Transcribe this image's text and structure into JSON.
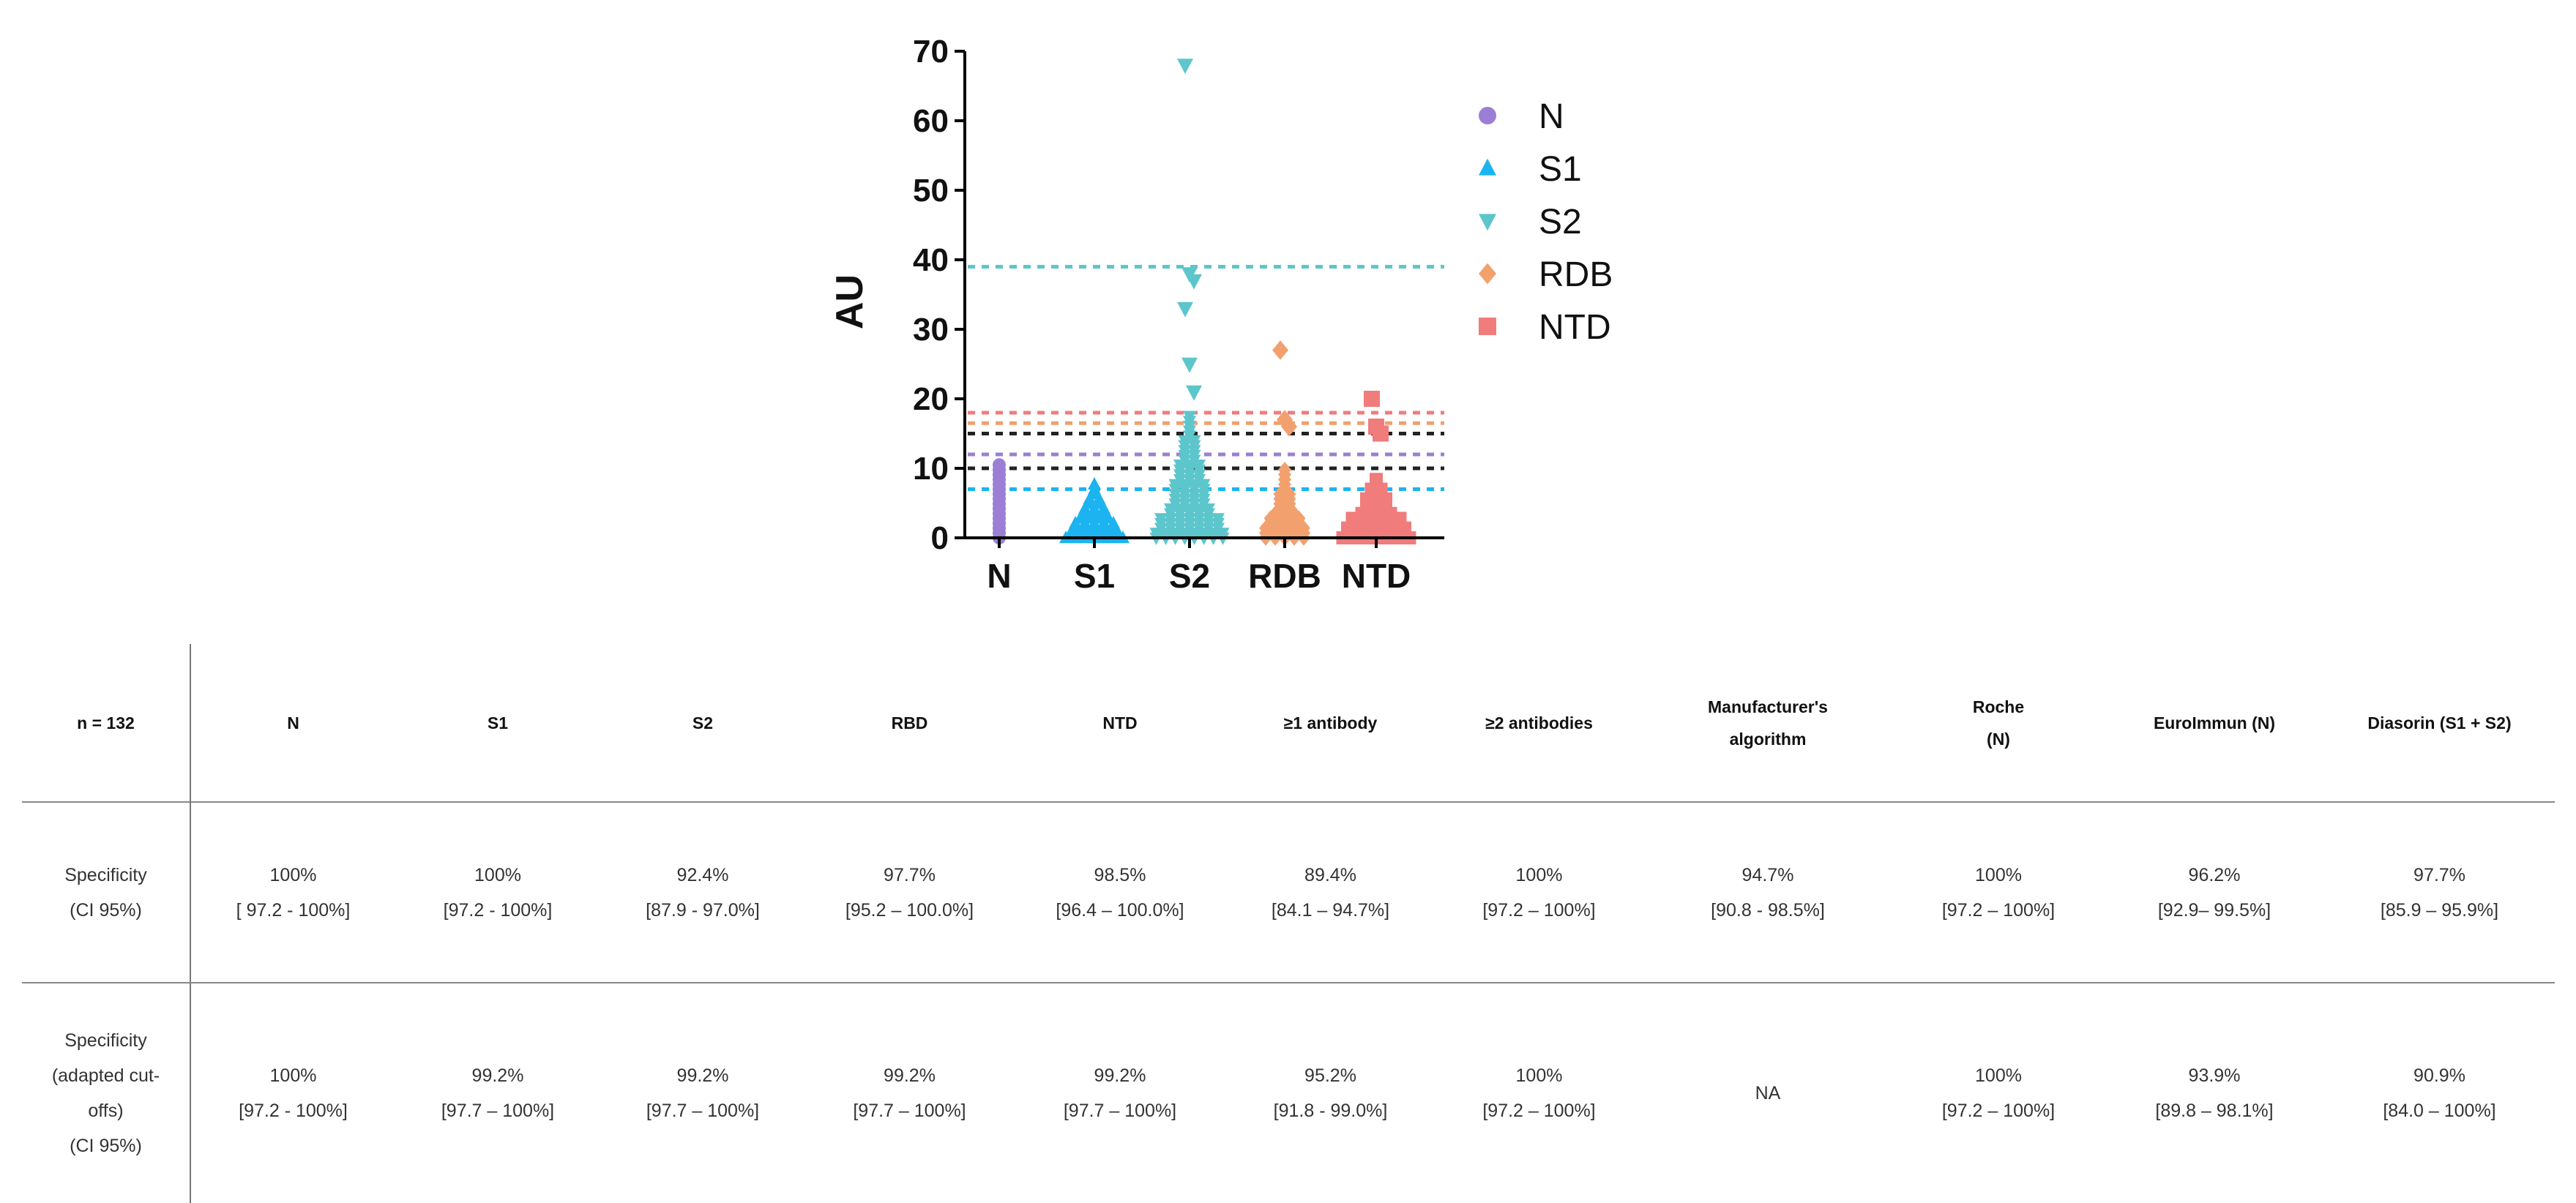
{
  "chart_data": {
    "type": "scatter",
    "ylabel": "AU",
    "ylim": [
      0,
      70
    ],
    "yticks": [
      "0",
      "10",
      "20",
      "30",
      "40",
      "50",
      "60",
      "70"
    ],
    "categories": [
      "N",
      "S1",
      "S2",
      "RDB",
      "NTD"
    ],
    "series": [
      {
        "name": "N",
        "color": "#9b7fd4",
        "marker": "circle",
        "cluster_max": 11,
        "outliers": []
      },
      {
        "name": "S1",
        "color": "#1bb4f0",
        "marker": "triangle-up",
        "cluster_max": 8,
        "outliers": []
      },
      {
        "name": "S2",
        "color": "#5cc6cc",
        "marker": "triangle-down",
        "cluster_max": 18,
        "outliers": [
          68,
          38,
          37,
          33,
          25,
          21
        ]
      },
      {
        "name": "RDB",
        "color": "#f2a06e",
        "marker": "diamond",
        "cluster_max": 10,
        "outliers": [
          27,
          17,
          16,
          4,
          3,
          2
        ]
      },
      {
        "name": "NTD",
        "color": "#f07c7c",
        "marker": "square",
        "cluster_max": 9,
        "outliers": [
          20,
          16,
          15
        ]
      }
    ],
    "cutoffs": [
      {
        "value": 39,
        "color": "#5cc6cc"
      },
      {
        "value": 18,
        "color": "#f07c7c"
      },
      {
        "value": 16.5,
        "color": "#f2a06e"
      },
      {
        "value": 15,
        "color": "#222222"
      },
      {
        "value": 12,
        "color": "#9b7fd4"
      },
      {
        "value": 10,
        "color": "#222222"
      },
      {
        "value": 7,
        "color": "#1bb4f0"
      }
    ]
  },
  "table": {
    "headers": [
      "n = 132",
      "N",
      "S1",
      "S2",
      "RBD",
      "NTD",
      "≥1 antibody",
      "≥2 antibodies",
      "Manufacturer's\nalgorithm",
      "Roche\n(N)",
      "EuroImmun (N)",
      "Diasorin (S1 + S2)"
    ],
    "rows": [
      {
        "label": "Specificity\n(CI 95%)",
        "cells": [
          {
            "pct": "100%",
            "ci": "[ 97.2 - 100%]"
          },
          {
            "pct": "100%",
            "ci": "[97.2 - 100%]"
          },
          {
            "pct": "92.4%",
            "ci": "[87.9 - 97.0%]"
          },
          {
            "pct": "97.7%",
            "ci": "[95.2 – 100.0%]"
          },
          {
            "pct": "98.5%",
            "ci": "[96.4 – 100.0%]"
          },
          {
            "pct": "89.4%",
            "ci": "[84.1 – 94.7%]"
          },
          {
            "pct": "100%",
            "ci": "[97.2 – 100%]"
          },
          {
            "pct": "94.7%",
            "ci": "[90.8 - 98.5%]"
          },
          {
            "pct": "100%",
            "ci": "[97.2 – 100%]"
          },
          {
            "pct": "96.2%",
            "ci": "[92.9– 99.5%]"
          },
          {
            "pct": "97.7%",
            "ci": "[85.9 – 95.9%]"
          }
        ]
      },
      {
        "label": "Specificity\n(adapted cut-\noffs)\n(CI 95%)",
        "cells": [
          {
            "pct": "100%",
            "ci": "[97.2 - 100%]"
          },
          {
            "pct": "99.2%",
            "ci": "[97.7 – 100%]"
          },
          {
            "pct": "99.2%",
            "ci": "[97.7 – 100%]"
          },
          {
            "pct": "99.2%",
            "ci": "[97.7 – 100%]"
          },
          {
            "pct": "99.2%",
            "ci": "[97.7 – 100%]"
          },
          {
            "pct": "95.2%",
            "ci": "[91.8 - 99.0%]"
          },
          {
            "pct": "100%",
            "ci": "[97.2 – 100%]"
          },
          {
            "pct": "NA",
            "ci": ""
          },
          {
            "pct": "100%",
            "ci": "[97.2 – 100%]"
          },
          {
            "pct": "93.9%",
            "ci": "[89.8 – 98.1%]"
          },
          {
            "pct": "90.9%",
            "ci": "[84.0 – 100%]"
          }
        ]
      }
    ]
  }
}
